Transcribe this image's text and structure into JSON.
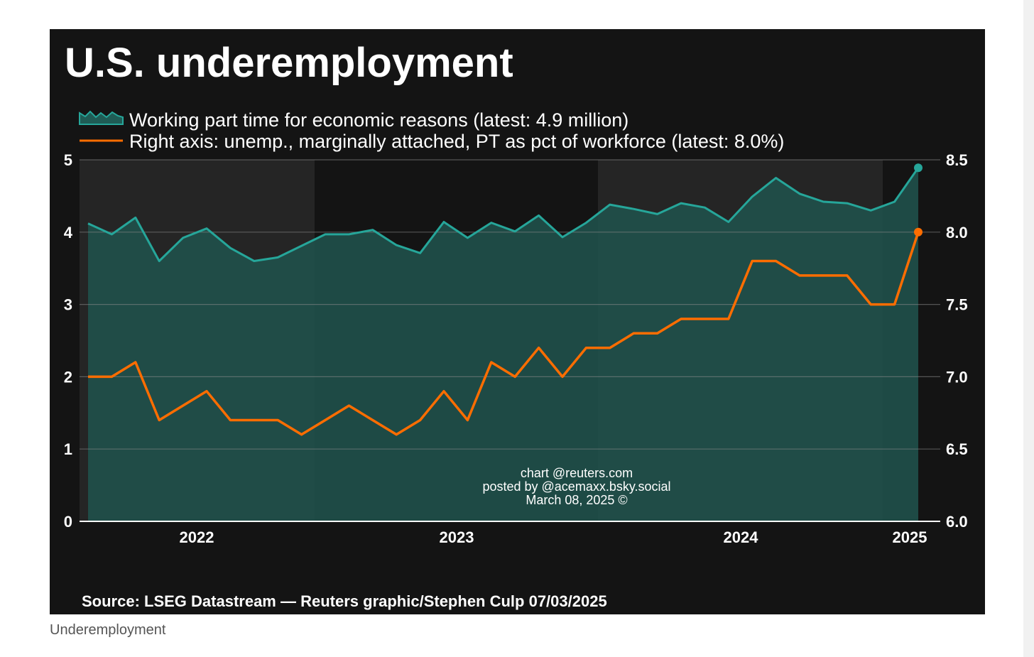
{
  "caption": "Underemployment",
  "chart_data": {
    "type": "line",
    "title": "U.S. underemployment",
    "source": "Source: LSEG Datastream — Reuters graphic/Stephen Culp 07/03/2025",
    "watermark": [
      "chart @reuters.com",
      "posted by @acemaxx.bsky.social",
      "March 08, 2025 ©"
    ],
    "x_ticks": [
      "2022",
      "2023",
      "2024",
      "2025"
    ],
    "y_left": {
      "range": [
        0,
        5
      ],
      "ticks": [
        "0",
        "1",
        "2",
        "3",
        "4",
        "5"
      ]
    },
    "y_right": {
      "range": [
        6.0,
        8.5
      ],
      "ticks": [
        "6.0",
        "6.5",
        "7.0",
        "7.5",
        "8.0",
        "8.5"
      ]
    },
    "grid": true,
    "legend_position": "top-left",
    "series": [
      {
        "name": "Working part time for economic reasons (latest: 4.9 million)",
        "axis": "left",
        "style": "area",
        "color": "#26a69a",
        "values": [
          4.12,
          3.97,
          4.2,
          3.6,
          3.92,
          4.05,
          3.78,
          3.6,
          3.65,
          3.81,
          3.97,
          3.97,
          4.03,
          3.82,
          3.71,
          4.14,
          3.92,
          4.13,
          4.01,
          4.23,
          3.93,
          4.13,
          4.38,
          4.32,
          4.25,
          4.4,
          4.34,
          4.14,
          4.49,
          4.75,
          4.53,
          4.42,
          4.4,
          4.3,
          4.42,
          4.89
        ]
      },
      {
        "name": "Right axis: unemp., marginally attached, PT as pct of workforce (latest: 8.0%)",
        "axis": "right",
        "style": "line",
        "color": "#ff6d00",
        "values": [
          7.0,
          7.0,
          7.1,
          6.7,
          6.8,
          6.9,
          6.7,
          6.7,
          6.7,
          6.6,
          6.7,
          6.8,
          6.7,
          6.6,
          6.7,
          6.9,
          6.7,
          7.1,
          7.0,
          7.2,
          7.0,
          7.2,
          7.2,
          7.3,
          7.3,
          7.4,
          7.4,
          7.4,
          7.8,
          7.8,
          7.7,
          7.7,
          7.7,
          7.5,
          7.5,
          8.0
        ]
      }
    ]
  }
}
